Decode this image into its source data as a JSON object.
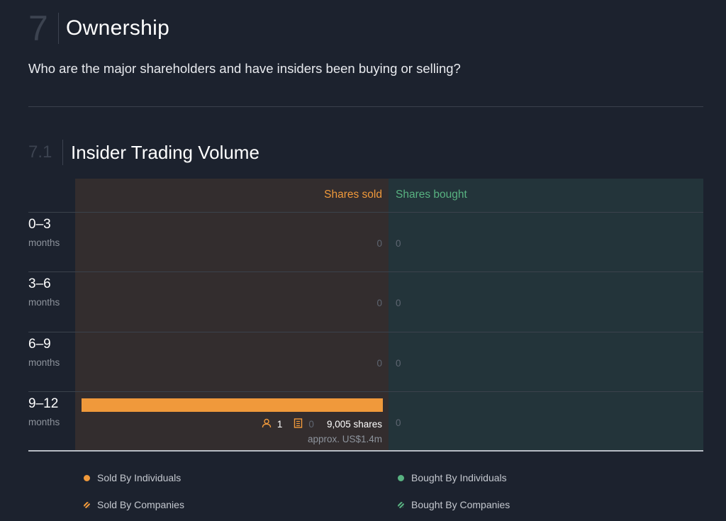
{
  "section": {
    "number": "7",
    "title": "Ownership"
  },
  "question": "Who are the major shareholders and have insiders been buying or selling?",
  "subsection": {
    "number": "7.1",
    "title": "Insider Trading Volume"
  },
  "chart_data": {
    "type": "bar",
    "title": "Insider Trading Volume",
    "columns": {
      "sold": "Shares sold",
      "bought": "Shares bought"
    },
    "categories": [
      {
        "label": "0–3",
        "unit": "months"
      },
      {
        "label": "3–6",
        "unit": "months"
      },
      {
        "label": "6–9",
        "unit": "months"
      },
      {
        "label": "9–12",
        "unit": "months"
      }
    ],
    "series": [
      {
        "name": "Shares sold",
        "values": [
          0,
          0,
          0,
          9005
        ]
      },
      {
        "name": "Shares bought",
        "values": [
          0,
          0,
          0,
          0
        ]
      }
    ],
    "sold_zero_labels": [
      "0",
      "0",
      "0"
    ],
    "bought_zero_labels": [
      "0",
      "0",
      "0",
      "0"
    ],
    "bar_detail": {
      "individuals": "1",
      "companies": "0",
      "shares": "9,005 shares",
      "approx": "approx. US$1.4m"
    },
    "legend": [
      {
        "label": "Sold By Individuals",
        "color": "#f0993b",
        "style": "solid"
      },
      {
        "label": "Sold By Companies",
        "color": "#f0993b",
        "style": "striped"
      },
      {
        "label": "Bought By Individuals",
        "color": "#58b281",
        "style": "solid"
      },
      {
        "label": "Bought By Companies",
        "color": "#58b281",
        "style": "striped"
      }
    ],
    "colors": {
      "sold": "#f0993b",
      "bought": "#58b281"
    }
  }
}
